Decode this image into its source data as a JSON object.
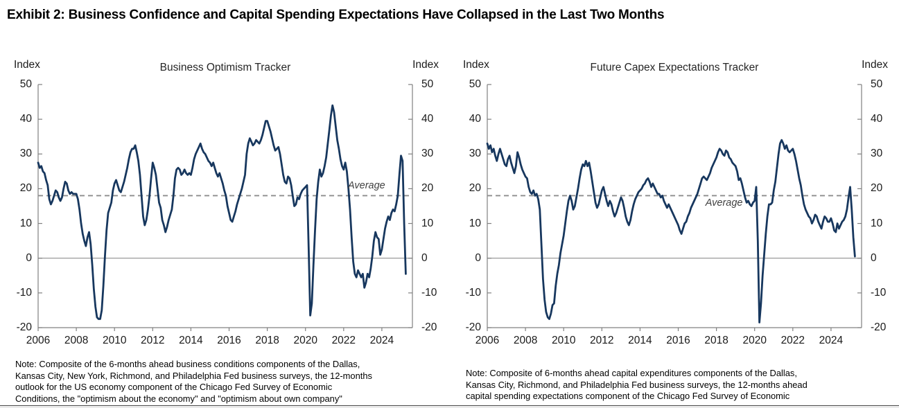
{
  "page": {
    "title": "Exhibit 2: Business Confidence and Capital Spending Expectations Have Collapsed in the Last Two Months"
  },
  "chart_data": [
    {
      "type": "line",
      "title": "Business Optimism Tracker",
      "index_label_left": "Index",
      "index_label_right": "Index",
      "ylim": [
        -20,
        50
      ],
      "yticks": [
        50,
        40,
        30,
        20,
        10,
        0,
        -10,
        -20
      ],
      "xtick_years": [
        2006,
        2008,
        2010,
        2012,
        2014,
        2016,
        2018,
        2020,
        2022,
        2024
      ],
      "xlim": [
        2006,
        2025.6
      ],
      "grid": false,
      "zero_line": true,
      "average_line": {
        "value": 18,
        "label": "Average",
        "label_side": "above",
        "label_anchor_year": 2023.2,
        "style": "dashed",
        "color": "#8c8c8c"
      },
      "series": [
        {
          "name": "Business Optimism Tracker",
          "color": "#17375e",
          "frequency": "monthly",
          "start": "2006-01",
          "end": "2025-04",
          "values": [
            27.5,
            26,
            26.5,
            25,
            24.5,
            22.5,
            21,
            17,
            15.5,
            16.5,
            18,
            19.5,
            19,
            17.5,
            16.5,
            17.5,
            20,
            22,
            21.5,
            19.5,
            18.5,
            19,
            18.5,
            18.5,
            18.5,
            17,
            14,
            10,
            7,
            5,
            3.5,
            6,
            7.5,
            4,
            -2,
            -9,
            -14,
            -17,
            -17.5,
            -17.5,
            -15,
            -8,
            0.5,
            8,
            13,
            14.5,
            16,
            19.5,
            21.5,
            22.5,
            21,
            19.5,
            19,
            20.5,
            22,
            24,
            26,
            28.5,
            30.5,
            31.5,
            31.5,
            32.5,
            30.5,
            28,
            24,
            18,
            12,
            9.5,
            11,
            14,
            18,
            23,
            27.5,
            26,
            24,
            20,
            16,
            14.5,
            11,
            9.5,
            7.5,
            9,
            11,
            12.5,
            14,
            18,
            23,
            25.5,
            26,
            25.5,
            24,
            24.5,
            25.5,
            24.5,
            24,
            24.5,
            24,
            26,
            28.5,
            30,
            31,
            32,
            33,
            31.5,
            30.5,
            30,
            29,
            28,
            27.5,
            26.5,
            27.5,
            26,
            24.5,
            23.5,
            24.5,
            23,
            21.5,
            19.5,
            18,
            15,
            13,
            11,
            10.5,
            12,
            13.5,
            15.5,
            17,
            18.5,
            20,
            22,
            24,
            30,
            33,
            34.5,
            33.5,
            32.5,
            33,
            34,
            33.5,
            33,
            34,
            35.5,
            37.5,
            39.5,
            39.5,
            38,
            36.5,
            34.5,
            32.5,
            31,
            31.5,
            32,
            30,
            27,
            24,
            22,
            21.5,
            23.5,
            23,
            21,
            18,
            15,
            15.5,
            17.5,
            17,
            18.5,
            19.5,
            20,
            20.5,
            21,
            3,
            -16.5,
            -13,
            -2,
            8,
            17,
            22,
            25.5,
            23.5,
            24.5,
            26.5,
            29,
            33,
            37,
            41,
            44,
            42,
            38,
            34,
            31.5,
            28.5,
            26.5,
            25.5,
            27.5,
            25,
            20,
            14,
            6,
            -1,
            -4.5,
            -5.5,
            -3.5,
            -4.5,
            -5.5,
            -4.5,
            -8.5,
            -7,
            -4.5,
            -5.5,
            -3,
            0.5,
            5,
            7.5,
            6,
            5.5,
            1,
            2.5,
            5.5,
            8.5,
            10.5,
            12,
            11,
            13,
            14,
            13.5,
            15.5,
            18,
            24,
            29.5,
            28,
            10,
            -4.5
          ]
        }
      ]
    },
    {
      "type": "line",
      "title": "Future Capex Expectations Tracker",
      "index_label_left": "Index",
      "index_label_right": "Index",
      "ylim": [
        -20,
        50
      ],
      "yticks": [
        50,
        40,
        30,
        20,
        10,
        0,
        -10,
        -20
      ],
      "xtick_years": [
        2006,
        2008,
        2010,
        2012,
        2014,
        2016,
        2018,
        2020,
        2022,
        2024
      ],
      "xlim": [
        2006,
        2025.6
      ],
      "grid": false,
      "zero_line": true,
      "average_line": {
        "value": 18,
        "label": "Average",
        "label_side": "below",
        "label_anchor_year": 2018.4,
        "style": "dashed",
        "color": "#8c8c8c"
      },
      "series": [
        {
          "name": "Future Capex Expectations Tracker",
          "color": "#17375e",
          "frequency": "monthly",
          "start": "2006-01",
          "end": "2025-04",
          "values": [
            33,
            31.5,
            32.5,
            30.5,
            31.5,
            29.5,
            28,
            30,
            31.5,
            30,
            28.5,
            27,
            26.5,
            28.5,
            29.5,
            27.5,
            26,
            24.5,
            26.5,
            30.5,
            29,
            27,
            25.5,
            24.5,
            23.5,
            23,
            20.5,
            19,
            18.5,
            19.5,
            18,
            18.5,
            17,
            14,
            4,
            -6,
            -12,
            -15.5,
            -17,
            -17.5,
            -16,
            -13.5,
            -13,
            -8,
            -4.5,
            -2,
            1.5,
            4,
            6.5,
            10,
            13.5,
            16.5,
            18,
            16.5,
            14,
            15,
            17.5,
            20,
            23,
            25.5,
            27,
            26.5,
            28,
            26.5,
            27.5,
            25,
            22,
            19,
            16,
            14.5,
            15.5,
            17.5,
            19.5,
            20.5,
            18.5,
            16.5,
            15,
            16.5,
            15.5,
            13.5,
            12,
            13,
            14.5,
            16,
            17.5,
            16.5,
            14.5,
            12,
            10.5,
            9.5,
            11,
            13.5,
            15.5,
            17,
            18,
            19,
            19.5,
            20,
            21,
            21.5,
            22.5,
            23,
            22,
            20.5,
            21.5,
            20.5,
            19.5,
            18.5,
            18.5,
            17.5,
            18,
            16.5,
            15.5,
            14.5,
            15.5,
            14.5,
            13.5,
            12.5,
            11.5,
            10.5,
            9.5,
            8,
            7,
            8.5,
            10,
            10.5,
            12,
            13,
            14.5,
            15.5,
            16.5,
            17.5,
            18.5,
            20,
            21.5,
            23,
            23.5,
            23,
            22.5,
            23.5,
            24.5,
            26,
            27,
            28,
            29,
            30.5,
            31.5,
            31,
            30,
            29.5,
            31,
            30.5,
            29,
            28.5,
            27.5,
            27,
            26.5,
            25,
            22.5,
            23,
            21.5,
            19.5,
            17.5,
            16,
            16.5,
            15.5,
            15,
            16,
            16.5,
            20.5,
            5,
            -18.5,
            -13,
            -5,
            1,
            7,
            12,
            15.5,
            15.5,
            16,
            19.5,
            22,
            26,
            30,
            33,
            34,
            33,
            31.5,
            32.5,
            31,
            30.5,
            31,
            31.5,
            30,
            28,
            25.5,
            23,
            21,
            18,
            15.5,
            14,
            13,
            12,
            11.5,
            10,
            11,
            12.5,
            12,
            10.5,
            9.5,
            8.5,
            10.5,
            12,
            11.5,
            10.5,
            10.5,
            11.5,
            10,
            8,
            7.5,
            10,
            8.5,
            9.5,
            10.5,
            11,
            12,
            14,
            17.5,
            20.5,
            14,
            6,
            0.5
          ]
        }
      ]
    }
  ],
  "notes": {
    "left": [
      "Note: Composite of the 6-months ahead business conditions components of the Dallas,",
      "Kansas City, New York, Richmond, and Philadelphia Fed business surveys, the 12-months",
      "outlook for the US economy component of the Chicago Fed Survey of Economic",
      "Conditions, the \"optimism about the economy\" and \"optimism about own company\""
    ],
    "right": [
      "Note: Composite of 6-months ahead capital expenditures components of the Dallas,",
      "Kansas City, Richmond, and Philadelphia  Fed business surveys, the 12-months ahead",
      "capital spending expectations component of the Chicago Fed Survey of Economic"
    ]
  }
}
